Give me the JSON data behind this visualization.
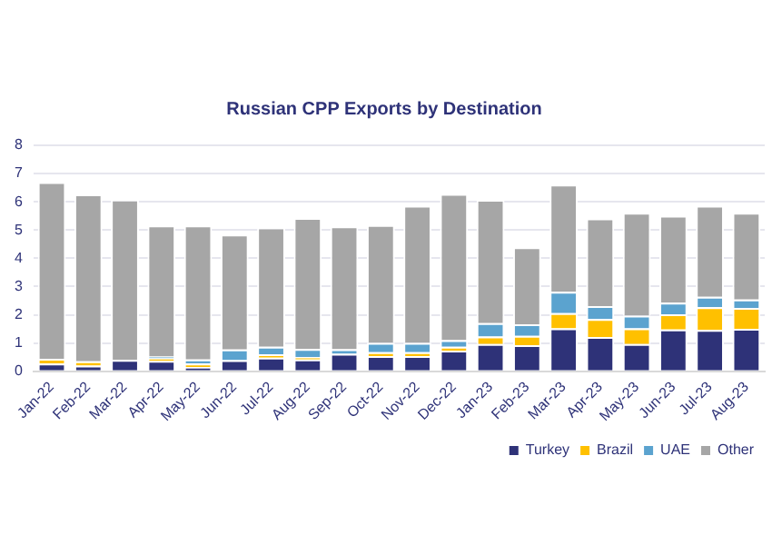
{
  "chart_data": {
    "type": "bar",
    "title": "Russian CPP Exports by Destination",
    "stacked": true,
    "categories": [
      "Jan-22",
      "Feb-22",
      "Mar-22",
      "Apr-22",
      "May-22",
      "Jun-22",
      "Jul-22",
      "Aug-22",
      "Sep-22",
      "Oct-22",
      "Nov-22",
      "Dec-22",
      "Jan-23",
      "Feb-23",
      "Mar-23",
      "Apr-23",
      "May-23",
      "Jun-23",
      "Jul-23",
      "Aug-23"
    ],
    "series": [
      {
        "name": "Turkey",
        "color": "#2e3278",
        "values": [
          0.27,
          0.2,
          0.4,
          0.37,
          0.15,
          0.39,
          0.48,
          0.42,
          0.62,
          0.54,
          0.54,
          0.73,
          0.96,
          0.92,
          1.52,
          1.21,
          0.96,
          1.48,
          1.46,
          1.5
        ]
      },
      {
        "name": "Brazil",
        "color": "#ffc000",
        "values": [
          0.17,
          0.15,
          null,
          0.09,
          0.12,
          null,
          0.12,
          0.08,
          null,
          0.13,
          0.13,
          0.14,
          0.27,
          0.33,
          0.54,
          0.64,
          0.56,
          0.54,
          0.81,
          0.74
        ]
      },
      {
        "name": "UAE",
        "color": "#5ba3cf",
        "values": [
          0,
          0,
          0,
          0.06,
          0.15,
          0.38,
          0.27,
          0.29,
          0.16,
          0.33,
          0.33,
          0.23,
          0.47,
          0.41,
          0.75,
          0.46,
          0.45,
          0.41,
          0.37,
          0.3
        ]
      },
      {
        "name": "Other",
        "color": "#a6a6a6",
        "values": [
          6.26,
          5.91,
          5.68,
          4.64,
          4.74,
          4.07,
          4.22,
          4.64,
          4.35,
          4.18,
          4.86,
          5.18,
          4.37,
          2.73,
          3.8,
          3.1,
          3.64,
          3.08,
          3.22,
          3.07
        ]
      }
    ],
    "ylim": [
      0,
      8
    ],
    "yticks": [
      0,
      1,
      2,
      3,
      4,
      5,
      6,
      7,
      8
    ],
    "grid": "y",
    "legend": "bottom right"
  }
}
